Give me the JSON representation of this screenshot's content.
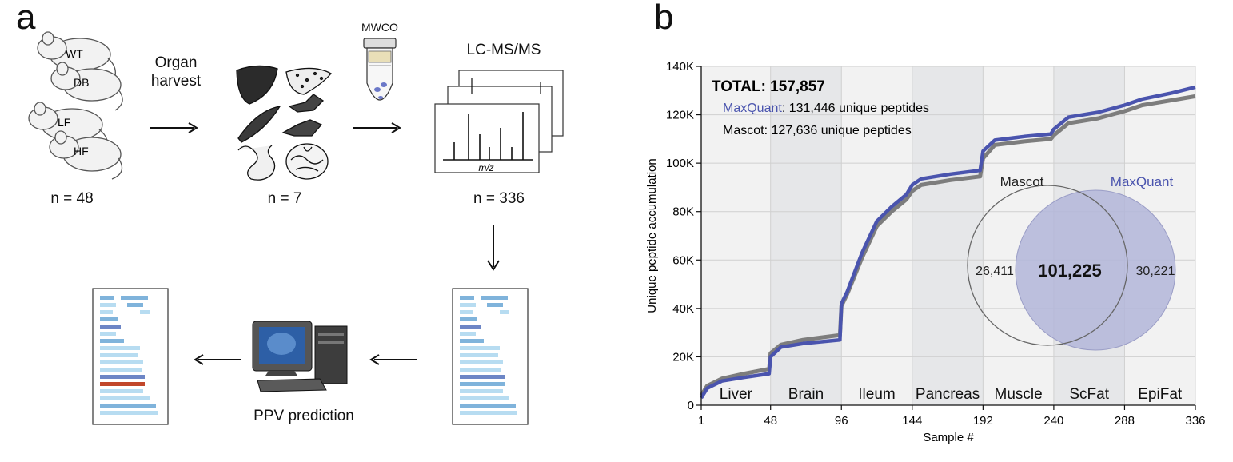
{
  "panel_a": {
    "letter": "a",
    "mice": [
      "WT",
      "DB",
      "LF",
      "HF"
    ],
    "n_mice": "n = 48",
    "step_organ": [
      "Organ",
      "harvest"
    ],
    "n_organs": "n = 7",
    "mwco": "MWCO",
    "lcms": "LC-MS/MS",
    "mz": "m/z",
    "n_runs": "n = 336",
    "ppv": "PPV prediction",
    "colors": {
      "light_bar": "#b7dcf1",
      "mid_bar": "#7fb3db",
      "dark_bar": "#6d86c6",
      "highlight_bar": "#c1472b"
    }
  },
  "panel_b": {
    "letter": "b",
    "total_label": "TOTAL: 157,857",
    "maxquant_name": "MaxQuant",
    "maxquant_rest": ": 131,446 unique peptides",
    "mascot_line": "Mascot: 127,636 unique peptides",
    "venn": {
      "mascot_label": "Mascot",
      "maxquant_label": "MaxQuant",
      "left_only": "26,411",
      "overlap": "101,225",
      "right_only": "30,221"
    },
    "colors": {
      "maxquant": "#4a54ae",
      "mascot": "#7d7d7d",
      "band_light": "#f2f2f2",
      "band_dark": "#e6e7e9",
      "venn_fill": "#b3b6d9"
    }
  },
  "chart_data": {
    "type": "line",
    "xlabel": "Sample #",
    "ylabel": "Unique peptide accumulation",
    "xlim": [
      1,
      336
    ],
    "ylim": [
      0,
      140000
    ],
    "x_ticks": [
      1,
      48,
      96,
      144,
      192,
      240,
      288,
      336
    ],
    "y_ticks": [
      0,
      20000,
      40000,
      60000,
      80000,
      100000,
      120000,
      140000
    ],
    "y_tick_labels": [
      "0",
      "20K",
      "40K",
      "60K",
      "80K",
      "100K",
      "120K",
      "140K"
    ],
    "x_tick_labels": [
      "1",
      "48",
      "96",
      "144",
      "192",
      "240",
      "288",
      "336"
    ],
    "grid": true,
    "organs": [
      {
        "name": "Liver",
        "start": 1,
        "end": 48
      },
      {
        "name": "Brain",
        "start": 48,
        "end": 96
      },
      {
        "name": "Ileum",
        "start": 96,
        "end": 144
      },
      {
        "name": "Pancreas",
        "start": 144,
        "end": 192
      },
      {
        "name": "Muscle",
        "start": 192,
        "end": 240
      },
      {
        "name": "ScFat",
        "start": 240,
        "end": 288
      },
      {
        "name": "EpiFat",
        "start": 288,
        "end": 336
      }
    ],
    "series": [
      {
        "name": "MaxQuant",
        "x": [
          1,
          5,
          15,
          30,
          47,
          48,
          55,
          70,
          95,
          96,
          100,
          110,
          120,
          130,
          140,
          144,
          150,
          170,
          190,
          192,
          200,
          220,
          238,
          240,
          250,
          270,
          288,
          300,
          320,
          336
        ],
        "y": [
          3000,
          7000,
          10000,
          11500,
          13000,
          20000,
          24000,
          25500,
          27000,
          42000,
          47000,
          63000,
          76000,
          82000,
          87000,
          91000,
          93500,
          95500,
          97000,
          105000,
          109500,
          111000,
          112000,
          114000,
          119000,
          121000,
          124000,
          126500,
          129000,
          131446
        ]
      },
      {
        "name": "Mascot",
        "x": [
          1,
          5,
          15,
          30,
          47,
          48,
          55,
          70,
          95,
          96,
          100,
          110,
          120,
          130,
          140,
          144,
          150,
          170,
          190,
          192,
          200,
          220,
          238,
          240,
          250,
          270,
          288,
          300,
          320,
          336
        ],
        "y": [
          4000,
          8000,
          11000,
          13000,
          15000,
          21500,
          25000,
          27000,
          29000,
          41000,
          46000,
          61000,
          74000,
          80000,
          85000,
          88500,
          91000,
          93000,
          94500,
          102000,
          107500,
          109000,
          110000,
          111500,
          116500,
          118500,
          121500,
          124000,
          126000,
          127636
        ]
      }
    ]
  }
}
